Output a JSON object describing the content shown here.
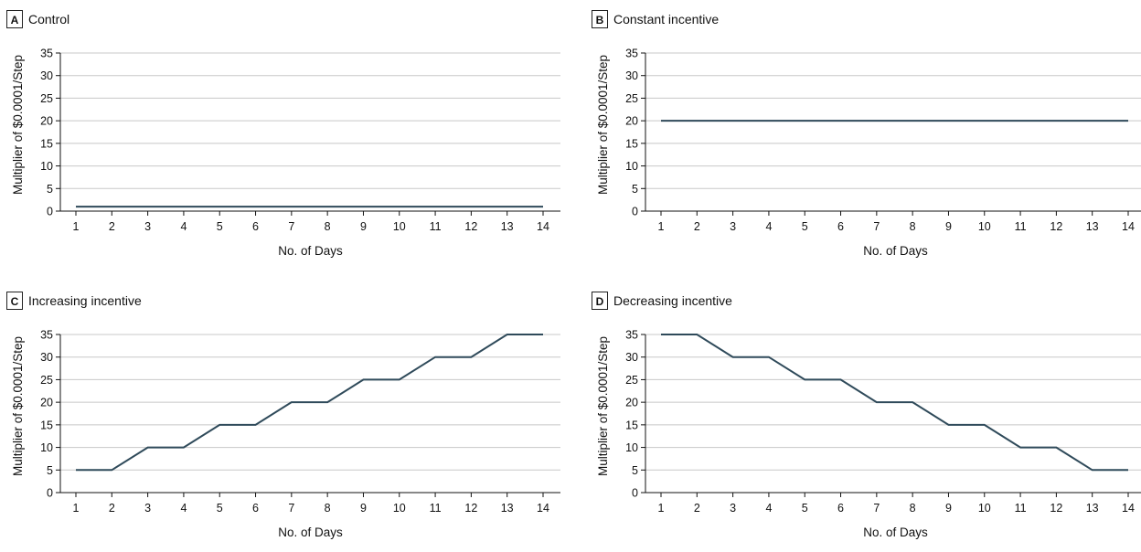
{
  "colors": {
    "series": "#2f4a5a",
    "grid": "#c8c8c8",
    "axis": "#111111"
  },
  "chart_data": [
    {
      "type": "line",
      "panel": "A",
      "title": "Control",
      "xlabel": "No. of Days",
      "ylabel": "Multiplier of $0.0001/Step",
      "x": [
        1,
        2,
        3,
        4,
        5,
        6,
        7,
        8,
        9,
        10,
        11,
        12,
        13,
        14
      ],
      "series": [
        {
          "values": [
            1,
            1,
            1,
            1,
            1,
            1,
            1,
            1,
            1,
            1,
            1,
            1,
            1,
            1
          ]
        }
      ],
      "xticks": [
        1,
        2,
        3,
        4,
        5,
        6,
        7,
        8,
        9,
        10,
        11,
        12,
        13,
        14
      ],
      "yticks": [
        0,
        5,
        10,
        15,
        20,
        25,
        30,
        35
      ],
      "xlim": [
        1,
        14
      ],
      "ylim": [
        0,
        35
      ],
      "grid": "horizontal"
    },
    {
      "type": "line",
      "panel": "B",
      "title": "Constant incentive",
      "xlabel": "No. of Days",
      "ylabel": "Multiplier of $0.0001/Step",
      "x": [
        1,
        2,
        3,
        4,
        5,
        6,
        7,
        8,
        9,
        10,
        11,
        12,
        13,
        14
      ],
      "series": [
        {
          "values": [
            20,
            20,
            20,
            20,
            20,
            20,
            20,
            20,
            20,
            20,
            20,
            20,
            20,
            20
          ]
        }
      ],
      "xticks": [
        1,
        2,
        3,
        4,
        5,
        6,
        7,
        8,
        9,
        10,
        11,
        12,
        13,
        14
      ],
      "yticks": [
        0,
        5,
        10,
        15,
        20,
        25,
        30,
        35
      ],
      "xlim": [
        1,
        14
      ],
      "ylim": [
        0,
        35
      ],
      "grid": "horizontal"
    },
    {
      "type": "line",
      "panel": "C",
      "title": "Increasing incentive",
      "xlabel": "No. of Days",
      "ylabel": "Multiplier of $0.0001/Step",
      "x": [
        1,
        2,
        3,
        4,
        5,
        6,
        7,
        8,
        9,
        10,
        11,
        12,
        13,
        14
      ],
      "series": [
        {
          "values": [
            5,
            5,
            10,
            10,
            15,
            15,
            20,
            20,
            25,
            25,
            30,
            30,
            35,
            35
          ]
        }
      ],
      "xticks": [
        1,
        2,
        3,
        4,
        5,
        6,
        7,
        8,
        9,
        10,
        11,
        12,
        13,
        14
      ],
      "yticks": [
        0,
        5,
        10,
        15,
        20,
        25,
        30,
        35
      ],
      "xlim": [
        1,
        14
      ],
      "ylim": [
        0,
        35
      ],
      "grid": "horizontal"
    },
    {
      "type": "line",
      "panel": "D",
      "title": "Decreasing incentive",
      "xlabel": "No. of Days",
      "ylabel": "Multiplier of $0.0001/Step",
      "x": [
        1,
        2,
        3,
        4,
        5,
        6,
        7,
        8,
        9,
        10,
        11,
        12,
        13,
        14
      ],
      "series": [
        {
          "values": [
            35,
            35,
            30,
            30,
            25,
            25,
            20,
            20,
            15,
            15,
            10,
            10,
            5,
            5
          ]
        }
      ],
      "xticks": [
        1,
        2,
        3,
        4,
        5,
        6,
        7,
        8,
        9,
        10,
        11,
        12,
        13,
        14
      ],
      "yticks": [
        0,
        5,
        10,
        15,
        20,
        25,
        30,
        35
      ],
      "xlim": [
        1,
        14
      ],
      "ylim": [
        0,
        35
      ],
      "grid": "horizontal"
    }
  ]
}
